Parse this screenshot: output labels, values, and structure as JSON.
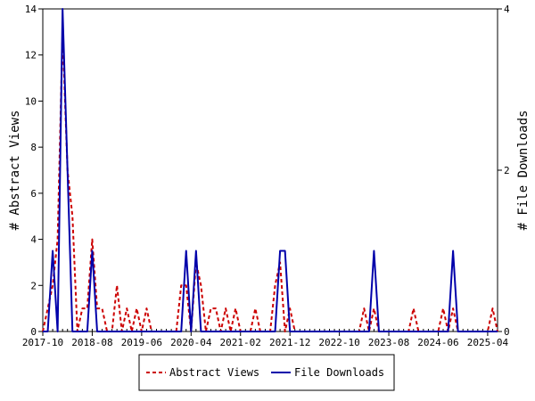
{
  "chart_data": {
    "type": "line",
    "title": "",
    "xlabel": "",
    "ylabel": "# Abstract Views",
    "y2label": "# File Downloads",
    "x_range": [
      "2017-10",
      "2025-06"
    ],
    "ylim": [
      0,
      14
    ],
    "y2lim": [
      0,
      4
    ],
    "yticks": [
      0,
      2,
      4,
      6,
      8,
      10,
      12,
      14
    ],
    "y2ticks": [
      0,
      2,
      4
    ],
    "xticks": [
      "2017-10",
      "2018-08",
      "2019-06",
      "2020-04",
      "2021-02",
      "2021-12",
      "2022-10",
      "2023-08",
      "2024-06",
      "2025-04"
    ],
    "grid": false,
    "legend_position": "bottom",
    "series": [
      {
        "name": "Abstract Views",
        "axis": "left",
        "color": "#cc0000",
        "dash": true,
        "points": [
          [
            "2017-10",
            0
          ],
          [
            "2017-11",
            1
          ],
          [
            "2017-12",
            2
          ],
          [
            "2018-01",
            4
          ],
          [
            "2018-02",
            13
          ],
          [
            "2018-03",
            7
          ],
          [
            "2018-04",
            5
          ],
          [
            "2018-05",
            0
          ],
          [
            "2018-06",
            1
          ],
          [
            "2018-07",
            1
          ],
          [
            "2018-08",
            4
          ],
          [
            "2018-09",
            1
          ],
          [
            "2018-10",
            1
          ],
          [
            "2018-11",
            0
          ],
          [
            "2018-12",
            0
          ],
          [
            "2019-01",
            2
          ],
          [
            "2019-02",
            0
          ],
          [
            "2019-03",
            1
          ],
          [
            "2019-04",
            0
          ],
          [
            "2019-05",
            1
          ],
          [
            "2019-06",
            0
          ],
          [
            "2019-07",
            1
          ],
          [
            "2019-08",
            0
          ],
          [
            "2019-09",
            0
          ],
          [
            "2019-10",
            0
          ],
          [
            "2019-11",
            0
          ],
          [
            "2019-12",
            0
          ],
          [
            "2020-01",
            0
          ],
          [
            "2020-02",
            2
          ],
          [
            "2020-03",
            2
          ],
          [
            "2020-04",
            0
          ],
          [
            "2020-05",
            3
          ],
          [
            "2020-06",
            2
          ],
          [
            "2020-07",
            0
          ],
          [
            "2020-08",
            1
          ],
          [
            "2020-09",
            1
          ],
          [
            "2020-10",
            0
          ],
          [
            "2020-11",
            1
          ],
          [
            "2020-12",
            0
          ],
          [
            "2021-01",
            1
          ],
          [
            "2021-02",
            0
          ],
          [
            "2021-03",
            0
          ],
          [
            "2021-04",
            0
          ],
          [
            "2021-05",
            1
          ],
          [
            "2021-06",
            0
          ],
          [
            "2021-07",
            0
          ],
          [
            "2021-08",
            0
          ],
          [
            "2021-09",
            2
          ],
          [
            "2021-10",
            3
          ],
          [
            "2021-11",
            0
          ],
          [
            "2021-12",
            1
          ],
          [
            "2022-01",
            0
          ],
          [
            "2022-02",
            0
          ],
          [
            "2022-03",
            0
          ],
          [
            "2022-04",
            0
          ],
          [
            "2022-05",
            0
          ],
          [
            "2022-06",
            0
          ],
          [
            "2022-07",
            0
          ],
          [
            "2022-08",
            0
          ],
          [
            "2022-09",
            0
          ],
          [
            "2022-10",
            0
          ],
          [
            "2022-11",
            0
          ],
          [
            "2022-12",
            0
          ],
          [
            "2023-01",
            0
          ],
          [
            "2023-02",
            0
          ],
          [
            "2023-03",
            1
          ],
          [
            "2023-04",
            0
          ],
          [
            "2023-05",
            1
          ],
          [
            "2023-06",
            0
          ],
          [
            "2023-07",
            0
          ],
          [
            "2023-08",
            0
          ],
          [
            "2023-09",
            0
          ],
          [
            "2023-10",
            0
          ],
          [
            "2023-11",
            0
          ],
          [
            "2023-12",
            0
          ],
          [
            "2024-01",
            1
          ],
          [
            "2024-02",
            0
          ],
          [
            "2024-03",
            0
          ],
          [
            "2024-04",
            0
          ],
          [
            "2024-05",
            0
          ],
          [
            "2024-06",
            0
          ],
          [
            "2024-07",
            1
          ],
          [
            "2024-08",
            0
          ],
          [
            "2024-09",
            1
          ],
          [
            "2024-10",
            0
          ],
          [
            "2024-11",
            0
          ],
          [
            "2024-12",
            0
          ],
          [
            "2025-01",
            0
          ],
          [
            "2025-02",
            0
          ],
          [
            "2025-03",
            0
          ],
          [
            "2025-04",
            0
          ],
          [
            "2025-05",
            1
          ],
          [
            "2025-06",
            0
          ]
        ]
      },
      {
        "name": "File Downloads",
        "axis": "right",
        "color": "#0000aa",
        "dash": false,
        "points": [
          [
            "2017-10",
            0
          ],
          [
            "2017-11",
            0
          ],
          [
            "2017-12",
            1
          ],
          [
            "2018-01",
            0
          ],
          [
            "2018-02",
            4
          ],
          [
            "2018-03",
            2
          ],
          [
            "2018-04",
            0
          ],
          [
            "2018-05",
            0
          ],
          [
            "2018-06",
            0
          ],
          [
            "2018-07",
            0
          ],
          [
            "2018-08",
            1
          ],
          [
            "2018-09",
            0
          ],
          [
            "2018-10",
            0
          ],
          [
            "2018-11",
            0
          ],
          [
            "2018-12",
            0
          ],
          [
            "2019-01",
            0
          ],
          [
            "2019-02",
            0
          ],
          [
            "2019-03",
            0
          ],
          [
            "2019-04",
            0
          ],
          [
            "2019-05",
            0
          ],
          [
            "2019-06",
            0
          ],
          [
            "2019-07",
            0
          ],
          [
            "2019-08",
            0
          ],
          [
            "2019-09",
            0
          ],
          [
            "2019-10",
            0
          ],
          [
            "2019-11",
            0
          ],
          [
            "2019-12",
            0
          ],
          [
            "2020-01",
            0
          ],
          [
            "2020-02",
            0
          ],
          [
            "2020-03",
            1
          ],
          [
            "2020-04",
            0
          ],
          [
            "2020-05",
            1
          ],
          [
            "2020-06",
            0
          ],
          [
            "2020-07",
            0
          ],
          [
            "2020-08",
            0
          ],
          [
            "2020-09",
            0
          ],
          [
            "2020-10",
            0
          ],
          [
            "2020-11",
            0
          ],
          [
            "2020-12",
            0
          ],
          [
            "2021-01",
            0
          ],
          [
            "2021-02",
            0
          ],
          [
            "2021-03",
            0
          ],
          [
            "2021-04",
            0
          ],
          [
            "2021-05",
            0
          ],
          [
            "2021-06",
            0
          ],
          [
            "2021-07",
            0
          ],
          [
            "2021-08",
            0
          ],
          [
            "2021-09",
            0
          ],
          [
            "2021-10",
            1
          ],
          [
            "2021-11",
            1
          ],
          [
            "2021-12",
            0
          ],
          [
            "2022-01",
            0
          ],
          [
            "2022-02",
            0
          ],
          [
            "2022-03",
            0
          ],
          [
            "2022-04",
            0
          ],
          [
            "2022-05",
            0
          ],
          [
            "2022-06",
            0
          ],
          [
            "2022-07",
            0
          ],
          [
            "2022-08",
            0
          ],
          [
            "2022-09",
            0
          ],
          [
            "2022-10",
            0
          ],
          [
            "2022-11",
            0
          ],
          [
            "2022-12",
            0
          ],
          [
            "2023-01",
            0
          ],
          [
            "2023-02",
            0
          ],
          [
            "2023-03",
            0
          ],
          [
            "2023-04",
            0
          ],
          [
            "2023-05",
            1
          ],
          [
            "2023-06",
            0
          ],
          [
            "2023-07",
            0
          ],
          [
            "2023-08",
            0
          ],
          [
            "2023-09",
            0
          ],
          [
            "2023-10",
            0
          ],
          [
            "2023-11",
            0
          ],
          [
            "2023-12",
            0
          ],
          [
            "2024-01",
            0
          ],
          [
            "2024-02",
            0
          ],
          [
            "2024-03",
            0
          ],
          [
            "2024-04",
            0
          ],
          [
            "2024-05",
            0
          ],
          [
            "2024-06",
            0
          ],
          [
            "2024-07",
            0
          ],
          [
            "2024-08",
            0
          ],
          [
            "2024-09",
            1
          ],
          [
            "2024-10",
            0
          ],
          [
            "2024-11",
            0
          ],
          [
            "2024-12",
            0
          ],
          [
            "2025-01",
            0
          ],
          [
            "2025-02",
            0
          ],
          [
            "2025-03",
            0
          ],
          [
            "2025-04",
            0
          ],
          [
            "2025-05",
            0
          ],
          [
            "2025-06",
            0
          ]
        ]
      }
    ]
  }
}
